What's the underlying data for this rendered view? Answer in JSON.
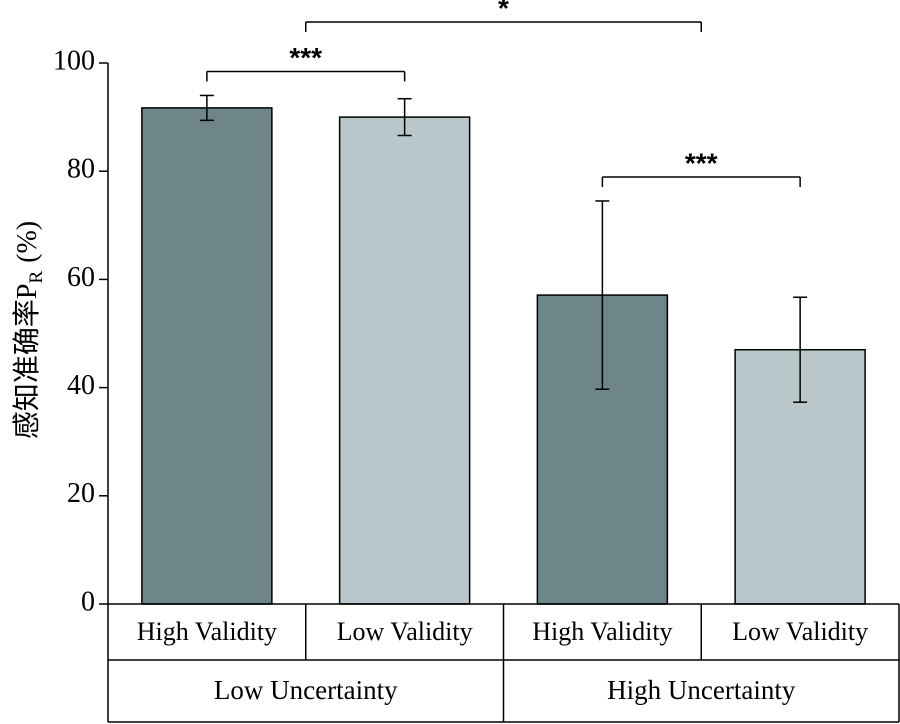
{
  "chart_data": {
    "type": "bar",
    "ylabel": {
      "main": "感知准确率P",
      "sub": "R",
      "unit": "(%)"
    },
    "categories": [
      "High Validity",
      "Low Validity",
      "High Validity",
      "Low Validity"
    ],
    "groups": [
      "Low Uncertainty",
      "High Uncertainty"
    ],
    "values": [
      91.7,
      90.0,
      57.1,
      47.0
    ],
    "errors": [
      2.3,
      3.4,
      17.4,
      9.7
    ],
    "colors": [
      "#6e858a",
      "#b9c7ca",
      "#6e858a",
      "#b9c7ca"
    ],
    "ylim": [
      0,
      100
    ],
    "yticks": [
      0,
      20,
      40,
      60,
      80,
      100
    ],
    "significance": [
      {
        "label": "***",
        "bars": [
          0,
          1
        ]
      },
      {
        "label": "***",
        "bars": [
          2,
          3
        ]
      },
      {
        "label": "*",
        "groups": [
          0,
          1
        ]
      }
    ]
  }
}
